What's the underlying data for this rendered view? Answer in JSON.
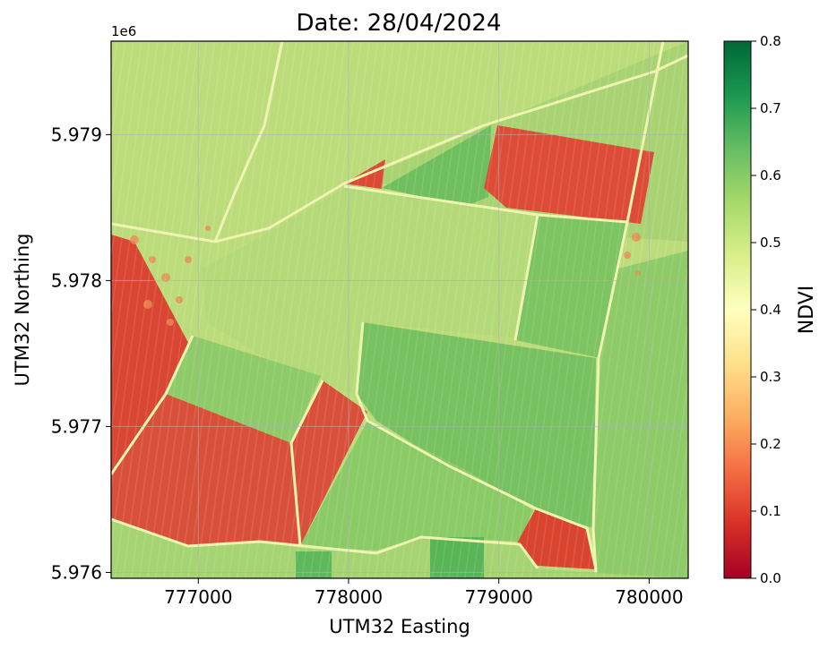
{
  "title": "Date: 28/04/2024",
  "x_axis": {
    "label": "UTM32 Easting",
    "ticks": [
      {
        "value": 777000,
        "label": "777000"
      },
      {
        "value": 778000,
        "label": "778000"
      },
      {
        "value": 779000,
        "label": "779000"
      },
      {
        "value": 780000,
        "label": "780000"
      }
    ],
    "range": [
      776420,
      780260
    ]
  },
  "y_axis": {
    "label": "UTM32 Northing",
    "offset_label": "1e6",
    "ticks": [
      {
        "value": 5.976,
        "label": "5.976"
      },
      {
        "value": 5.977,
        "label": "5.977"
      },
      {
        "value": 5.978,
        "label": "5.978"
      },
      {
        "value": 5.979,
        "label": "5.979"
      }
    ],
    "range": [
      5.97596,
      5.97964
    ]
  },
  "colorbar": {
    "label": "NDVI",
    "colormap": "RdYlGn",
    "range": [
      0.0,
      0.8
    ],
    "ticks": [
      "0.0",
      "0.1",
      "0.2",
      "0.3",
      "0.4",
      "0.5",
      "0.6",
      "0.7",
      "0.8"
    ]
  },
  "grid": true,
  "colors": {
    "background_green": "#b9dc7a",
    "high_ndvi": "#69bb5f",
    "medium_ndvi": "#96cc66",
    "low_ndvi": "#de4a34",
    "boundary": "#eef4b0"
  }
}
